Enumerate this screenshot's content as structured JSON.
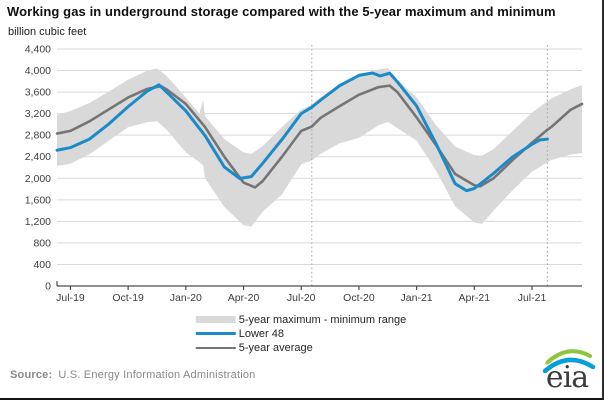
{
  "header": {
    "title": "Working gas in underground storage compared with the 5-year maximum and minimum",
    "unit_label": "billion cubic feet"
  },
  "source_line": {
    "prefix": "Source:",
    "text": "U.S. Energy Information Administration"
  },
  "logo": {
    "text": "eia",
    "green": "#8dc63f",
    "yellow": "#f2d13e",
    "blue": "#00a0dc",
    "text_color": "#3d3d3d"
  },
  "colors": {
    "band": "#d9d9d9",
    "lower48": "#1b8ac9",
    "average": "#757575",
    "grid": "#d9d9d9",
    "axis": "#4d4d4d",
    "tick_text": "#404040",
    "dotted_line": "#a9a9a9"
  },
  "chart_data": {
    "type": "line",
    "title": "Working gas in underground storage compared with the 5-year maximum and minimum",
    "ylabel": "billion cubic feet",
    "xlabel": "",
    "grid": "horizontal",
    "legend_position": "bottom-center",
    "ylim": [
      0,
      4400
    ],
    "y_ticks": [
      0,
      400,
      800,
      1200,
      1600,
      2000,
      2400,
      2800,
      3200,
      3600,
      4000,
      4400
    ],
    "x_tick_labels": [
      "Jul-19",
      "Oct-19",
      "Jan-20",
      "Apr-20",
      "Jul-20",
      "Oct-20",
      "Jan-21",
      "Apr-21",
      "Jul-21"
    ],
    "x_tick_months": [
      0,
      3,
      6,
      9,
      12,
      15,
      18,
      21,
      24
    ],
    "x_domain_months": [
      -0.7,
      26.6
    ],
    "dotted_vlines_months": [
      12.55,
      24.8
    ],
    "band": {
      "label": "5-year maximum - minimum range",
      "points": [
        {
          "m": -0.7,
          "max": 3180,
          "min": 2230
        },
        {
          "m": 0,
          "max": 3250,
          "min": 2270
        },
        {
          "m": 1,
          "max": 3400,
          "min": 2450
        },
        {
          "m": 2,
          "max": 3610,
          "min": 2700
        },
        {
          "m": 3,
          "max": 3830,
          "min": 2950
        },
        {
          "m": 4,
          "max": 4000,
          "min": 3040
        },
        {
          "m": 4.5,
          "max": 4040,
          "min": 3060
        },
        {
          "m": 5,
          "max": 3900,
          "min": 2900
        },
        {
          "m": 6,
          "max": 3500,
          "min": 2480
        },
        {
          "m": 6.7,
          "max": 3200,
          "min": 2300
        },
        {
          "m": 6.9,
          "max": 3460,
          "min": 2240
        },
        {
          "m": 7,
          "max": 3150,
          "min": 2000
        },
        {
          "m": 8,
          "max": 2730,
          "min": 1470
        },
        {
          "m": 9,
          "max": 2480,
          "min": 1130
        },
        {
          "m": 9.4,
          "max": 2450,
          "min": 1100
        },
        {
          "m": 10,
          "max": 2600,
          "min": 1380
        },
        {
          "m": 11,
          "max": 2950,
          "min": 1700
        },
        {
          "m": 12,
          "max": 3280,
          "min": 2260
        },
        {
          "m": 12.55,
          "max": 3360,
          "min": 2330
        },
        {
          "m": 13,
          "max": 3500,
          "min": 2450
        },
        {
          "m": 14,
          "max": 3720,
          "min": 2650
        },
        {
          "m": 15,
          "max": 3920,
          "min": 2750
        },
        {
          "m": 16,
          "max": 4020,
          "min": 2980
        },
        {
          "m": 16.5,
          "max": 4045,
          "min": 3050
        },
        {
          "m": 17,
          "max": 3830,
          "min": 2930
        },
        {
          "m": 18,
          "max": 3500,
          "min": 2700
        },
        {
          "m": 19,
          "max": 2990,
          "min": 2150
        },
        {
          "m": 20,
          "max": 2590,
          "min": 1480
        },
        {
          "m": 21,
          "max": 2430,
          "min": 1180
        },
        {
          "m": 21.4,
          "max": 2420,
          "min": 1150
        },
        {
          "m": 22,
          "max": 2540,
          "min": 1400
        },
        {
          "m": 23,
          "max": 2880,
          "min": 1780
        },
        {
          "m": 24,
          "max": 3220,
          "min": 2120
        },
        {
          "m": 25,
          "max": 3480,
          "min": 2340
        },
        {
          "m": 26,
          "max": 3650,
          "min": 2440
        },
        {
          "m": 26.6,
          "max": 3730,
          "min": 2470
        }
      ]
    },
    "series": [
      {
        "label": "5-year average",
        "color_key": "average",
        "width": 2.6,
        "points": [
          [
            -0.7,
            2830
          ],
          [
            0,
            2880
          ],
          [
            1,
            3060
          ],
          [
            2,
            3280
          ],
          [
            3,
            3500
          ],
          [
            4,
            3660
          ],
          [
            4.7,
            3710
          ],
          [
            5,
            3650
          ],
          [
            6,
            3380
          ],
          [
            7,
            2950
          ],
          [
            8,
            2400
          ],
          [
            9,
            1920
          ],
          [
            9.6,
            1830
          ],
          [
            10,
            1950
          ],
          [
            11,
            2400
          ],
          [
            12,
            2880
          ],
          [
            12.55,
            2960
          ],
          [
            13,
            3120
          ],
          [
            14,
            3340
          ],
          [
            15,
            3550
          ],
          [
            16,
            3690
          ],
          [
            16.6,
            3720
          ],
          [
            17,
            3600
          ],
          [
            18,
            3130
          ],
          [
            19,
            2620
          ],
          [
            20,
            2080
          ],
          [
            21,
            1870
          ],
          [
            21.3,
            1850
          ],
          [
            22,
            2000
          ],
          [
            23,
            2340
          ],
          [
            24,
            2660
          ],
          [
            24.8,
            2900
          ],
          [
            25,
            2950
          ],
          [
            26,
            3270
          ],
          [
            26.6,
            3380
          ]
        ]
      },
      {
        "label": "Lower 48",
        "color_key": "lower48",
        "width": 3,
        "points": [
          [
            -0.7,
            2520
          ],
          [
            0,
            2570
          ],
          [
            1,
            2730
          ],
          [
            2,
            3010
          ],
          [
            3,
            3330
          ],
          [
            4,
            3620
          ],
          [
            4.6,
            3735
          ],
          [
            5,
            3600
          ],
          [
            6,
            3250
          ],
          [
            7,
            2790
          ],
          [
            8,
            2210
          ],
          [
            8.8,
            1995
          ],
          [
            9.4,
            2030
          ],
          [
            10,
            2280
          ],
          [
            11,
            2720
          ],
          [
            12,
            3200
          ],
          [
            12.55,
            3320
          ],
          [
            13,
            3450
          ],
          [
            14,
            3720
          ],
          [
            15,
            3910
          ],
          [
            15.7,
            3955
          ],
          [
            16.1,
            3900
          ],
          [
            16.6,
            3950
          ],
          [
            17,
            3790
          ],
          [
            18,
            3340
          ],
          [
            19,
            2650
          ],
          [
            20,
            1900
          ],
          [
            20.6,
            1770
          ],
          [
            21,
            1810
          ],
          [
            22,
            2090
          ],
          [
            23,
            2400
          ],
          [
            24,
            2630
          ],
          [
            24.4,
            2710
          ],
          [
            24.8,
            2727
          ]
        ]
      }
    ]
  }
}
